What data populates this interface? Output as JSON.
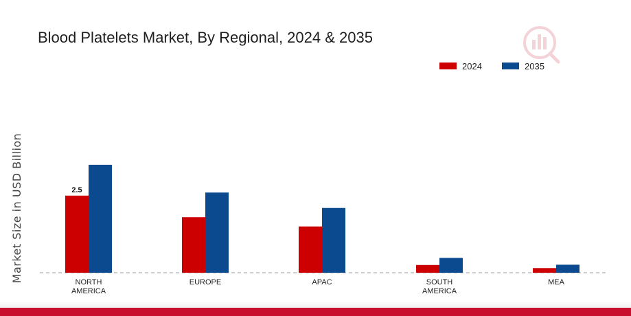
{
  "chart_data": {
    "type": "bar",
    "title": "Blood Platelets Market, By Regional, 2024 & 2035",
    "ylabel": "Market Size in USD Billion",
    "xlabel": "",
    "categories": [
      "NORTH\nAMERICA",
      "EUROPE",
      "APAC",
      "SOUTH\nAMERICA",
      "MEA"
    ],
    "series": [
      {
        "name": "2024",
        "color": "#cc0000",
        "values": [
          2.5,
          1.8,
          1.5,
          0.25,
          0.15
        ]
      },
      {
        "name": "2035",
        "color": "#0b4a8f",
        "values": [
          3.5,
          2.6,
          2.1,
          0.48,
          0.26
        ]
      }
    ],
    "data_labels": [
      {
        "series": 0,
        "category": 0,
        "text": "2.5"
      }
    ],
    "ylim": [
      0,
      4.5
    ],
    "grid": false,
    "legend_position": "top-right",
    "baseline_style": "dashed"
  }
}
